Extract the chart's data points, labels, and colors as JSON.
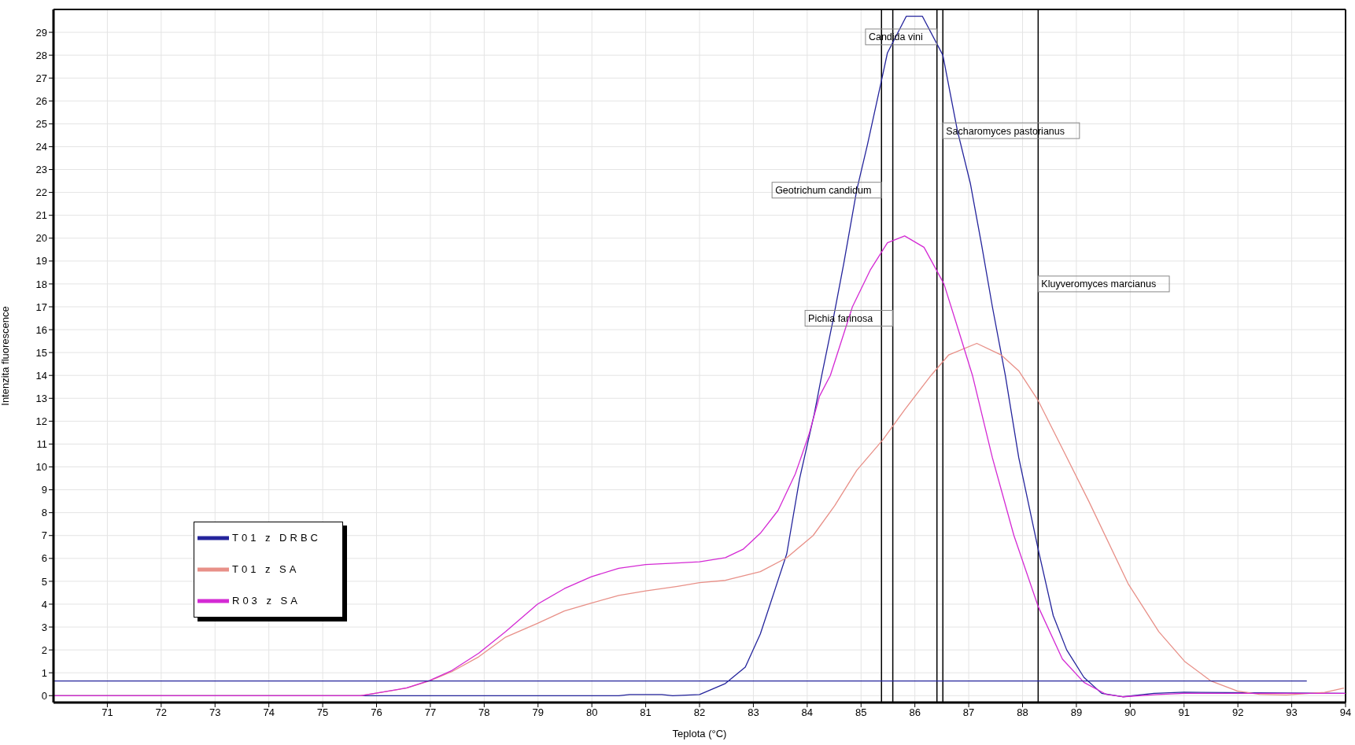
{
  "chart_data": {
    "type": "line",
    "xlabel": "Teplota (°C)",
    "ylabel": "Intenzita fluorescence",
    "xlim": [
      70,
      94
    ],
    "ylim": [
      -0.3,
      30
    ],
    "xticks": [
      71,
      72,
      73,
      74,
      75,
      76,
      77,
      78,
      79,
      80,
      81,
      82,
      83,
      84,
      85,
      86,
      87,
      88,
      89,
      90,
      91,
      92,
      93,
      94
    ],
    "yticks": [
      0,
      1,
      2,
      3,
      4,
      5,
      6,
      7,
      8,
      9,
      10,
      11,
      12,
      13,
      14,
      15,
      16,
      17,
      18,
      19,
      20,
      21,
      22,
      23,
      24,
      25,
      26,
      27,
      28,
      29
    ],
    "grid": true,
    "legend": "bottom left",
    "marker": "none",
    "line_style": "solid",
    "series": [
      {
        "name": "T01 z DRBC",
        "color": "#24249c",
        "x": [
          70,
          75.7,
          80.5,
          80.7,
          81.3,
          81.5,
          82,
          82.48,
          82.85,
          83.13,
          83.41,
          83.62,
          83.86,
          84.13,
          84.27,
          84.47,
          84.68,
          84.92,
          85.12,
          85.39,
          85.49,
          85.84,
          86.14,
          86.52,
          86.79,
          87.03,
          87.24,
          87.44,
          87.68,
          87.93,
          88.29,
          88.57,
          88.82,
          89.14,
          89.47,
          89.86,
          90.44,
          91,
          94
        ],
        "values": [
          0,
          0,
          0,
          0.05,
          0.05,
          0,
          0.05,
          0.53,
          1.25,
          2.7,
          4.7,
          6.2,
          9.5,
          12.3,
          14,
          16.3,
          18.9,
          22.1,
          24.1,
          27,
          28.1,
          29.7,
          29.7,
          28,
          24.7,
          22.4,
          19.7,
          17,
          14,
          10.4,
          6.4,
          3.5,
          2,
          0.8,
          0.1,
          -0.05,
          0.1,
          0.15,
          0.1
        ]
      },
      {
        "name": "T01 z SA",
        "color": "#e89088",
        "x": [
          70,
          75.7,
          75.97,
          76.56,
          76.99,
          77.4,
          77.9,
          78.4,
          78.99,
          79.49,
          79.99,
          80.5,
          81,
          81.59,
          82,
          82.48,
          83.13,
          83.62,
          84.11,
          84.51,
          84.92,
          85.41,
          85.81,
          86.3,
          86.63,
          87.15,
          87.6,
          87.93,
          88.29,
          88.74,
          89.23,
          89.96,
          90.53,
          91.01,
          91.5,
          91.99,
          92.4,
          92.9,
          93.61,
          93.97
        ],
        "values": [
          0,
          0,
          0.1,
          0.33,
          0.65,
          1.05,
          1.7,
          2.56,
          3.16,
          3.7,
          4.05,
          4.38,
          4.58,
          4.78,
          4.94,
          5.04,
          5.42,
          6.03,
          7,
          8.3,
          9.85,
          11.2,
          12.5,
          14,
          14.9,
          15.4,
          14.9,
          14.2,
          12.9,
          10.8,
          8.5,
          4.9,
          2.8,
          1.5,
          0.64,
          0.2,
          0.06,
          0.03,
          0.14,
          0.33
        ]
      },
      {
        "name": "R03 z SA",
        "color": "#d42ad4",
        "x": [
          70,
          75.7,
          75.97,
          76.56,
          76.99,
          77.4,
          77.9,
          78.4,
          78.99,
          79.49,
          79.99,
          80.5,
          81,
          81.59,
          82,
          82.48,
          82.81,
          83.13,
          83.46,
          83.78,
          84.03,
          84.23,
          84.43,
          84.84,
          85.17,
          85.49,
          85.81,
          86.17,
          86.54,
          86.82,
          87.07,
          87.44,
          87.84,
          88.29,
          88.74,
          89.14,
          89.55,
          89.86,
          90.5,
          91,
          94
        ],
        "values": [
          0,
          0,
          0.1,
          0.34,
          0.67,
          1.1,
          1.86,
          2.8,
          4,
          4.68,
          5.2,
          5.57,
          5.73,
          5.8,
          5.85,
          6.03,
          6.4,
          7.1,
          8.1,
          9.7,
          11.4,
          13.1,
          14,
          17,
          18.6,
          19.8,
          20.1,
          19.6,
          18,
          15.9,
          14,
          10.4,
          7,
          3.9,
          1.6,
          0.58,
          0.06,
          -0.05,
          0.05,
          0.1,
          0.1
        ]
      },
      {
        "color": "#24249c",
        "x": [
          70,
          93.28
        ],
        "values": [
          0.64,
          0.64
        ]
      }
    ],
    "ref_lines": [
      {
        "axis": "x",
        "value": 85.38,
        "color": "#000000"
      },
      {
        "axis": "x",
        "value": 85.59,
        "color": "#000000"
      },
      {
        "axis": "x",
        "value": 86.41,
        "color": "#000000"
      },
      {
        "axis": "x",
        "value": 86.52,
        "color": "#000000"
      },
      {
        "axis": "x",
        "value": 88.29,
        "color": "#000000"
      }
    ],
    "annotations": [
      {
        "text": "Candida vini",
        "x": 86.41,
        "y": 28.8
      },
      {
        "text": "Sacharomyces pastorianus",
        "x": 86.52,
        "y": 24.7
      },
      {
        "text": "Geotrichum candidum",
        "x": 85.38,
        "y": 22.1
      },
      {
        "text": "Kluyveromyces marcianus",
        "x": 88.29,
        "y": 18
      },
      {
        "text": "Pichia farinosa",
        "x": 85.59,
        "y": 16.5
      }
    ]
  }
}
